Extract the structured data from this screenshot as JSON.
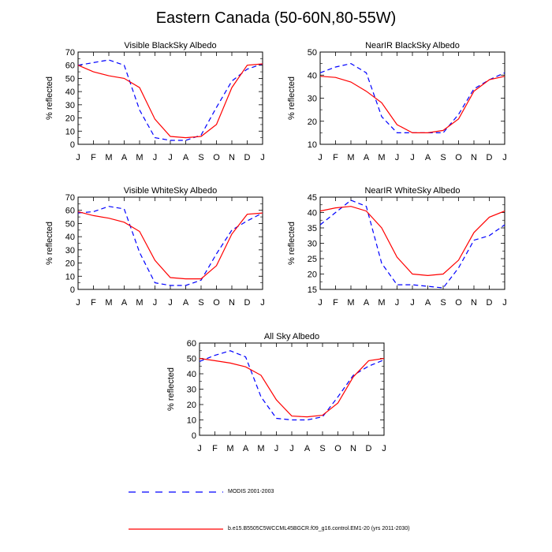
{
  "page": {
    "title": "Eastern Canada (50-60N,80-55W)"
  },
  "legend": {
    "modis_label": "MODIS 2001-2003",
    "model_label": "b.e15.B5505C5WCCML45BGCR.f09_g16.control.EM1-20 (yrs 2011-2030)",
    "modis_color": "#0000ff",
    "model_color": "#ff0000"
  },
  "chart_data": [
    {
      "type": "line",
      "title": "Visible BlackSky Albedo",
      "xlabel": "",
      "ylabel": "% reflected",
      "categories": [
        "J",
        "F",
        "M",
        "A",
        "M",
        "J",
        "J",
        "A",
        "S",
        "O",
        "N",
        "D",
        "J"
      ],
      "ylim": [
        0,
        70
      ],
      "yticks": [
        0,
        10,
        20,
        30,
        40,
        50,
        60,
        70
      ],
      "series": [
        {
          "name": "MODIS 2001-2003",
          "style": "dashed",
          "color": "#0000ff",
          "values": [
            60,
            62,
            64,
            60,
            26,
            5,
            3,
            3,
            7,
            28,
            48,
            57,
            61
          ]
        },
        {
          "name": "b.e15.B5505C5WCCML45BGCR.f09_g16.control.EM1-20 (yrs 2011-2030)",
          "style": "solid",
          "color": "#ff0000",
          "values": [
            60,
            55,
            52,
            50,
            43,
            19,
            6,
            5,
            6,
            15,
            43,
            60,
            61
          ]
        }
      ]
    },
    {
      "type": "line",
      "title": "NearIR BlackSky Albedo",
      "xlabel": "",
      "ylabel": "% reflected",
      "categories": [
        "J",
        "F",
        "M",
        "A",
        "M",
        "J",
        "J",
        "A",
        "S",
        "O",
        "N",
        "D",
        "J"
      ],
      "ylim": [
        10,
        50
      ],
      "yticks": [
        10,
        20,
        30,
        40,
        50
      ],
      "series": [
        {
          "name": "MODIS 2001-2003",
          "style": "dashed",
          "color": "#0000ff",
          "values": [
            41,
            43.5,
            45,
            41,
            22,
            15,
            15,
            15,
            15,
            23,
            34,
            38,
            41
          ]
        },
        {
          "name": "b.e15.B5505C5WCCML45BGCR.f09_g16.control.EM1-20 (yrs 2011-2030)",
          "style": "solid",
          "color": "#ff0000",
          "values": [
            39.5,
            39,
            37,
            33,
            28,
            18.5,
            15,
            15,
            16,
            21,
            33,
            38,
            39.5
          ]
        }
      ]
    },
    {
      "type": "line",
      "title": "Visible WhiteSky Albedo",
      "xlabel": "",
      "ylabel": "% reflected",
      "categories": [
        "J",
        "F",
        "M",
        "A",
        "M",
        "J",
        "J",
        "A",
        "S",
        "O",
        "N",
        "D",
        "J"
      ],
      "ylim": [
        0,
        70
      ],
      "yticks": [
        0,
        10,
        20,
        30,
        40,
        50,
        60,
        70
      ],
      "series": [
        {
          "name": "MODIS 2001-2003",
          "style": "dashed",
          "color": "#0000ff",
          "values": [
            58,
            59,
            63,
            61,
            28,
            5,
            3,
            3,
            7,
            27,
            45,
            52,
            58
          ]
        },
        {
          "name": "b.e15.B5505C5WCCML45BGCR.f09_g16.control.EM1-20 (yrs 2011-2030)",
          "style": "solid",
          "color": "#ff0000",
          "values": [
            59,
            56,
            54,
            51,
            44,
            22,
            9,
            8,
            8,
            18,
            42,
            57,
            58
          ]
        }
      ]
    },
    {
      "type": "line",
      "title": "NearIR WhiteSky Albedo",
      "xlabel": "",
      "ylabel": "% reflected",
      "categories": [
        "J",
        "F",
        "M",
        "A",
        "M",
        "J",
        "J",
        "A",
        "S",
        "O",
        "N",
        "D",
        "J"
      ],
      "ylim": [
        15,
        45
      ],
      "yticks": [
        15,
        20,
        25,
        30,
        35,
        40,
        45
      ],
      "series": [
        {
          "name": "MODIS 2001-2003",
          "style": "dashed",
          "color": "#0000ff",
          "values": [
            36,
            40,
            44,
            42,
            23.5,
            16.5,
            16.5,
            16,
            15.5,
            22,
            31,
            32.5,
            36
          ]
        },
        {
          "name": "b.e15.B5505C5WCCML45BGCR.f09_g16.control.EM1-20 (yrs 2011-2030)",
          "style": "solid",
          "color": "#ff0000",
          "values": [
            40.5,
            41.5,
            42,
            40.5,
            35,
            25.5,
            20,
            19.5,
            20,
            24.5,
            33.5,
            38.5,
            40.5
          ]
        }
      ]
    },
    {
      "type": "line",
      "title": "All Sky Albedo",
      "xlabel": "",
      "ylabel": "% reflected",
      "categories": [
        "J",
        "F",
        "M",
        "A",
        "M",
        "J",
        "J",
        "A",
        "S",
        "O",
        "N",
        "D",
        "J"
      ],
      "ylim": [
        0,
        60
      ],
      "yticks": [
        0,
        10,
        20,
        30,
        40,
        50,
        60
      ],
      "series": [
        {
          "name": "MODIS 2001-2003",
          "style": "dashed",
          "color": "#0000ff",
          "values": [
            48,
            52,
            55,
            51,
            25,
            11,
            10,
            10,
            12,
            25,
            39,
            45,
            49
          ]
        },
        {
          "name": "b.e15.B5505C5WCCML45BGCR.f09_g16.control.EM1-20 (yrs 2011-2030)",
          "style": "solid",
          "color": "#ff0000",
          "values": [
            50,
            48.5,
            47,
            44.5,
            39,
            23,
            12.5,
            12,
            13,
            21,
            38,
            48.5,
            50
          ]
        }
      ]
    }
  ]
}
